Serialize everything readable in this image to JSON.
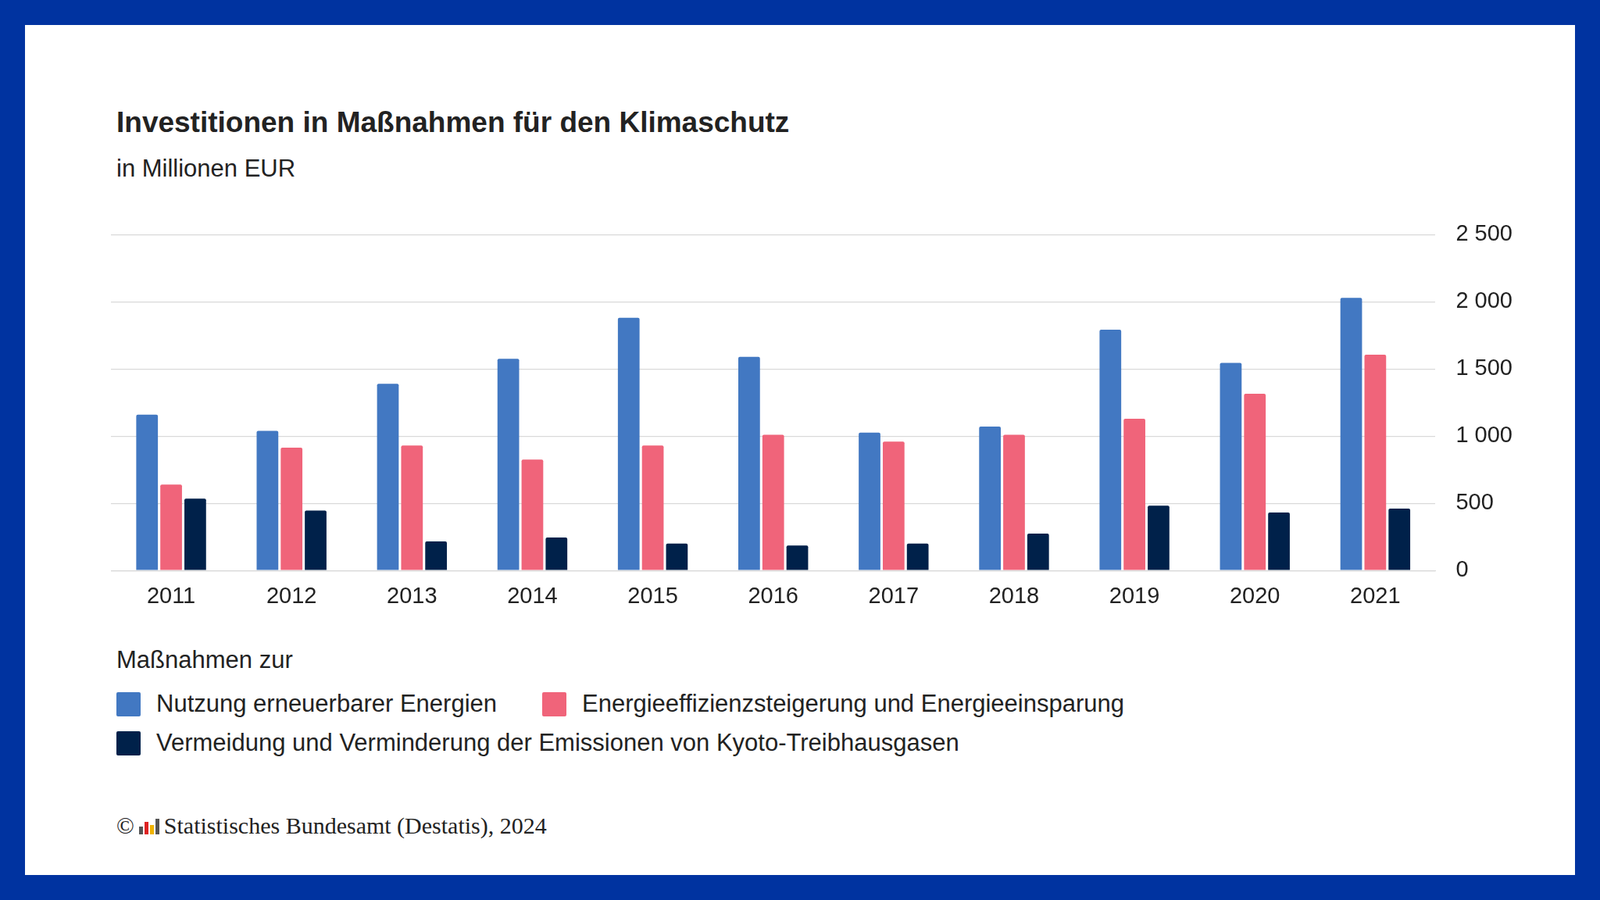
{
  "chart_data": {
    "type": "bar",
    "title": "Investitionen in Maßnahmen für den Klimaschutz",
    "subtitle": "in Millionen EUR",
    "categories": [
      "2011",
      "2012",
      "2013",
      "2014",
      "2015",
      "2016",
      "2017",
      "2018",
      "2019",
      "2020",
      "2021"
    ],
    "series": [
      {
        "name": "Nutzung erneuerbarer Energien",
        "color": "#4278c2",
        "values": [
          1160,
          1040,
          1390,
          1576,
          1881,
          1591,
          1026,
          1071,
          1792,
          1546,
          2030
        ]
      },
      {
        "name": "Energieeffizienzsteigerung und Energieeinsparung",
        "color": "#f0647a",
        "values": [
          640,
          915,
          930,
          825,
          930,
          1011,
          959,
          1011,
          1130,
          1316,
          1606
        ]
      },
      {
        "name": "Vermeidung und Verminderung der Emissionen von Kyoto-Treibhausgasen",
        "color": "#00214a",
        "values": [
          535,
          446,
          216,
          245,
          200,
          186,
          200,
          275,
          483,
          431,
          461
        ]
      }
    ],
    "ylim": [
      0,
      2500
    ],
    "yticks": [
      0,
      500,
      {
        "value": 1000,
        "label": "1 000"
      },
      {
        "value": 1500,
        "label": "1 500"
      },
      {
        "value": 2000,
        "label": "2 000"
      },
      {
        "value": 2500,
        "label": "2 500"
      }
    ],
    "grid": true,
    "legend": "bottom",
    "legend_title": "Maßnahmen zur",
    "source": "© Statistisches Bundesamt (Destatis), 2024"
  }
}
